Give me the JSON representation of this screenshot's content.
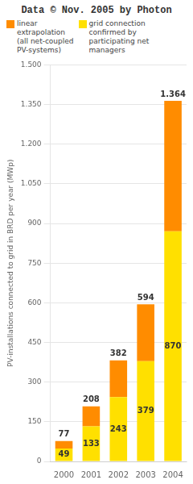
{
  "chart_data": {
    "type": "bar",
    "title": "Data © Nov. 2005 by Photon",
    "ylabel": "PV-installations connected to grid in BRD per year (MWp)",
    "categories": [
      "2000",
      "2001",
      "2002",
      "2003",
      "2004"
    ],
    "series": [
      {
        "name": "grid connection\nconfirmed by\nparticipating net\nmanagers",
        "color": "#FFE000",
        "values": [
          49,
          133,
          243,
          379,
          870
        ],
        "data_labels": true
      },
      {
        "name": "linear\nextrapolation\n(all net-coupled\nPV-systems)",
        "color": "#FF8C00",
        "values": [
          28,
          75,
          139,
          215,
          494
        ],
        "totals": [
          77,
          208,
          382,
          594,
          1364
        ],
        "total_labels": [
          "77",
          "208",
          "382",
          "594",
          "1.364"
        ]
      }
    ],
    "stacked": true,
    "ylim": [
      0,
      1500
    ],
    "yticks": [
      0,
      150,
      300,
      450,
      600,
      750,
      900,
      {
        "value": 1050,
        "label": "1.050"
      },
      {
        "value": 1200,
        "label": "1.200"
      },
      {
        "value": 1350,
        "label": "1.350"
      },
      {
        "value": 1500,
        "label": "1.500"
      }
    ],
    "grid": true,
    "legend": "upper left"
  }
}
